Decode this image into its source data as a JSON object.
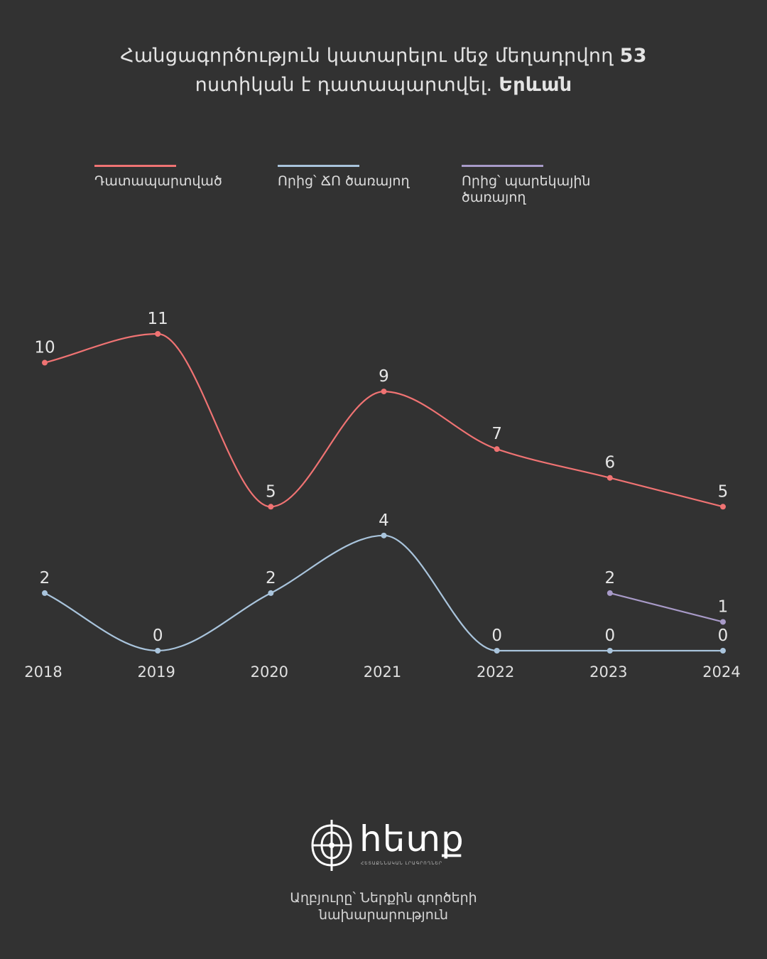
{
  "title": {
    "line1_text": "Հանցագործություն կատարելու մեջ մեղադրվող ",
    "line1_bold": "53",
    "line2_text": "ոստիկան է դատապարտվել. ",
    "line2_bold": "Երևան"
  },
  "legend": [
    {
      "label": "Դատապարտված",
      "color": "#f07373"
    },
    {
      "label": "Որից՝ ՃՈ ծառայող",
      "color": "#a9c4dc"
    },
    {
      "label": "Որից՝ պարեկային ծառայող",
      "color": "#a89ac8"
    }
  ],
  "chart_data": {
    "type": "line",
    "x": [
      "2018",
      "2019",
      "2020",
      "2021",
      "2022",
      "2023",
      "2024"
    ],
    "series": [
      {
        "name": "Դատապարտված",
        "color": "#f07373",
        "values": [
          10,
          11,
          5,
          9,
          7,
          6,
          5
        ]
      },
      {
        "name": "Որից՝ ՃՈ ծառայող",
        "color": "#a9c4dc",
        "values": [
          2,
          0,
          2,
          4,
          0,
          0,
          0
        ]
      },
      {
        "name": "Որից՝ պարեկային ծառայող",
        "color": "#a89ac8",
        "values": [
          null,
          null,
          null,
          null,
          null,
          2,
          1
        ]
      }
    ],
    "ylim": [
      0,
      11
    ],
    "grid": false
  },
  "logo": {
    "text": "հետք",
    "subtitle": "ՀԵՏԱՔՆՆԱԿԱՆ ԼՐԱԳՐՈՂՆԵՐ"
  },
  "source": {
    "line1": "Աղբյուրը՝ Ներքին գործերի",
    "line2": "նախարարություն"
  }
}
